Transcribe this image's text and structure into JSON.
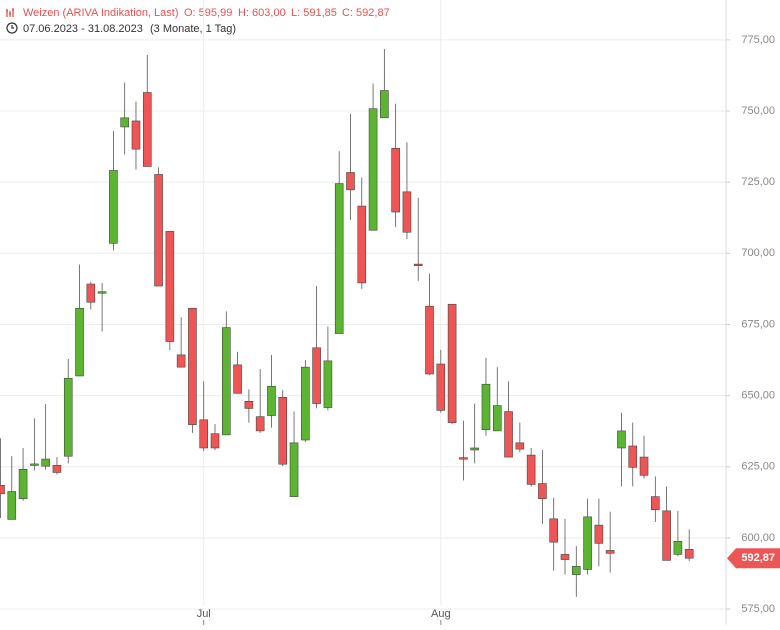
{
  "chart_data": {
    "type": "candlestick",
    "header": {
      "title": "Weizen (ARIVA Indikation, Last)",
      "open": "O: 595,99",
      "high": "H: 603,00",
      "low": "L: 591,85",
      "close": "C: 592,87",
      "range": "07.06.2023 - 31.08.2023",
      "period": "(3 Monate, 1 Tag)"
    },
    "last_label": "592,87",
    "categories": [
      null,
      null,
      null,
      null,
      null,
      null,
      null,
      null,
      null,
      null,
      null,
      null,
      null,
      null,
      null,
      null,
      null,
      null,
      "Jul",
      null,
      null,
      null,
      null,
      null,
      null,
      null,
      null,
      null,
      null,
      null,
      null,
      null,
      null,
      null,
      null,
      null,
      null,
      null,
      null,
      "Aug",
      null,
      null,
      null,
      null,
      null,
      null,
      null,
      null,
      null,
      null,
      null,
      null,
      null,
      null,
      null,
      null,
      null,
      null,
      null,
      null,
      null,
      null
    ],
    "open": [
      618.5,
      606.5,
      613.8,
      625.5,
      625.2,
      625.5,
      628.7,
      656.9,
      689.2,
      686,
      703.5,
      744.4,
      746.5,
      756.5,
      727.7,
      707.7,
      664.3,
      680.7,
      641.5,
      636.6,
      636.2,
      660.8,
      648,
      642.6,
      643,
      649.4,
      614.5,
      634.4,
      666.8,
      645.8,
      671.8,
      728.4,
      716.6,
      708.1,
      747.6,
      736.9,
      721.6,
      696.2,
      681.4,
      661.1,
      682.1,
      628.2,
      630.9,
      638,
      637.6,
      644.4,
      633.4,
      629.1,
      619.1,
      606.7,
      594.2,
      587.1,
      588.9,
      604.5,
      595.6,
      631.6,
      632.3,
      628.4,
      614.5,
      609.5,
      594.2,
      595.99
    ],
    "high": [
      635,
      628.7,
      631.6,
      642,
      647,
      628.4,
      662.9,
      696,
      690,
      689.6,
      743,
      760,
      753.3,
      769.7,
      730.2,
      707.7,
      677.5,
      680.7,
      655,
      640,
      679.6,
      665.4,
      652.2,
      659.3,
      664.3,
      651.9,
      644.4,
      662.5,
      688.5,
      674.3,
      735.9,
      749,
      726.6,
      759.7,
      771.8,
      752.6,
      739,
      719.5,
      692.8,
      666.1,
      682.1,
      641.2,
      647.2,
      663.3,
      660,
      655,
      640.5,
      631.6,
      630.9,
      614.1,
      606.7,
      597.1,
      613.8,
      613.8,
      609.2,
      644,
      640.5,
      635.9,
      621.6,
      618.1,
      609.5,
      603
    ],
    "low": [
      607,
      606.7,
      613,
      623.7,
      624,
      622.3,
      626.2,
      656.9,
      680.3,
      672.5,
      701,
      734.8,
      729.4,
      730.5,
      688.5,
      666,
      660,
      636.9,
      630.5,
      630.9,
      636.2,
      650.8,
      640.5,
      636.9,
      638.7,
      625.2,
      614.5,
      633.7,
      645.5,
      644.8,
      671.8,
      711.7,
      687.5,
      708.1,
      747.6,
      709.2,
      705,
      690.3,
      657.2,
      644,
      640,
      620.2,
      626.2,
      635.9,
      637.6,
      628.4,
      630.2,
      618,
      604.9,
      588.5,
      587.1,
      579.3,
      587.1,
      590,
      587.8,
      618.1,
      618.1,
      620.9,
      605.6,
      592.1,
      593.5,
      591.85
    ],
    "close": [
      615.5,
      616.3,
      624.1,
      626,
      627.7,
      623,
      656.1,
      680.7,
      682.8,
      686.5,
      729.1,
      747.6,
      736.6,
      730.5,
      688.5,
      669,
      660,
      639.8,
      631.6,
      631.6,
      673.9,
      650.8,
      645.5,
      637.6,
      653.3,
      625.9,
      633.4,
      660,
      647.2,
      662.2,
      724.5,
      722.3,
      689.6,
      750.8,
      757.2,
      714.5,
      707.4,
      696,
      657.6,
      644.8,
      640.5,
      628,
      631.6,
      654,
      646.5,
      628.4,
      631.2,
      618.8,
      613.8,
      598.5,
      592.4,
      590,
      607.4,
      598.1,
      594.6,
      637.6,
      624.8,
      622,
      609.9,
      592.1,
      598.8,
      592.87
    ],
    "up_color": "#5cb531",
    "down_color": "#f05555",
    "ylim": [
      569.4,
      789
    ],
    "yticks": [
      {
        "value": 575,
        "label": "575,00"
      },
      {
        "value": 600,
        "label": "600,00"
      },
      {
        "value": 625,
        "label": "625,00"
      },
      {
        "value": 650,
        "label": "650,00"
      },
      {
        "value": 675,
        "label": "675,00"
      },
      {
        "value": 700,
        "label": "700,00"
      },
      {
        "value": 725,
        "label": "725,00"
      },
      {
        "value": 750,
        "label": "750,00"
      },
      {
        "value": 775,
        "label": "775,00"
      }
    ],
    "grid": true
  }
}
